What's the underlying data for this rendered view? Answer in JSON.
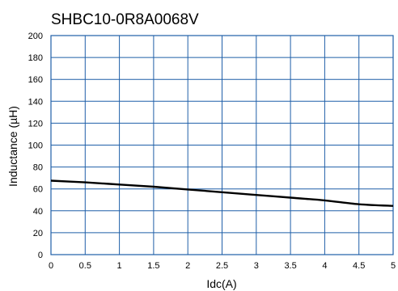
{
  "chart_data": {
    "type": "line",
    "title": "SHBC10-0R8A0068V",
    "xlabel": "Idc(A)",
    "ylabel": "Inductance (µH)",
    "xlim": [
      0,
      5
    ],
    "ylim": [
      0,
      200
    ],
    "x_ticks": [
      "0",
      "0.5",
      "1",
      "1.5",
      "2",
      "2.5",
      "3",
      "3.5",
      "4",
      "4.5",
      "5"
    ],
    "y_ticks": [
      "0",
      "20",
      "40",
      "60",
      "80",
      "100",
      "120",
      "140",
      "160",
      "180",
      "200"
    ],
    "grid": true,
    "series": [
      {
        "x": [
          0,
          0.5,
          1,
          1.5,
          2,
          2.5,
          3,
          3.5,
          4,
          4.5,
          5
        ],
        "y": [
          67.5,
          66,
          64,
          62,
          59.5,
          57,
          54.5,
          52,
          49.5,
          46,
          44.5
        ]
      }
    ]
  }
}
